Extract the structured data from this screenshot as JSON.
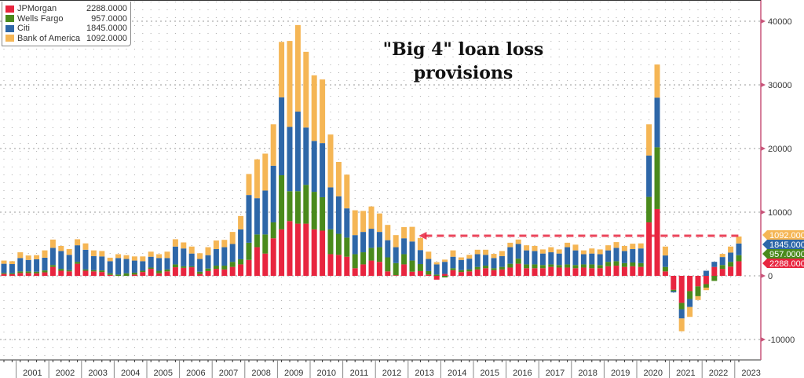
{
  "chart_data": {
    "type": "bar",
    "stacked": true,
    "title": "\"Big 4\" loan loss provisions",
    "xlabel": "",
    "ylabel": "",
    "ylim": [
      -13000,
      43500
    ],
    "yticks": [
      40000,
      30000,
      20000,
      10000,
      0,
      -10000
    ],
    "ytick_labels": [
      "40000",
      "30000",
      "20000",
      "10000",
      "0",
      "-10000"
    ],
    "grid": true,
    "legend_position": "top-left",
    "first_period": "2000Q3",
    "last_period": "2023Q1",
    "year_labels": [
      "2001",
      "2002",
      "2003",
      "2004",
      "2005",
      "2006",
      "2007",
      "2008",
      "2009",
      "2010",
      "2011",
      "2012",
      "2013",
      "2014",
      "2015",
      "2016",
      "2017",
      "2018",
      "2019",
      "2020",
      "2021",
      "2022",
      "2023"
    ],
    "annotation_line_value": 6300,
    "series": [
      {
        "name": "JPMorgan",
        "last": "2288.0000",
        "color": "#e8253f",
        "values": [
          300,
          250,
          450,
          450,
          400,
          550,
          1400,
          800,
          700,
          1900,
          800,
          700,
          600,
          150,
          0,
          0,
          200,
          600,
          1100,
          400,
          700,
          1350,
          1250,
          1350,
          300,
          750,
          1100,
          1000,
          1400,
          1800,
          2500,
          4500,
          3500,
          5900,
          7300,
          8600,
          8200,
          8200,
          7300,
          7100,
          3400,
          3300,
          3000,
          1200,
          1800,
          2400,
          2200,
          700,
          100,
          1800,
          650,
          750,
          200,
          -600,
          300,
          900,
          600,
          700,
          1000,
          1200,
          900,
          1000,
          1300,
          1900,
          1200,
          1200,
          1200,
          1400,
          1300,
          1300,
          1200,
          1300,
          1200,
          1200,
          1500,
          1600,
          1400,
          1500,
          1400,
          8400,
          10500,
          700,
          -2200,
          -4250,
          -2400,
          -1650,
          -1300,
          1400,
          1100,
          1450,
          2288
        ]
      },
      {
        "name": "Wells Fargo",
        "last": "957.0000",
        "color": "#4a8a1c",
        "values": [
          150,
          150,
          250,
          250,
          250,
          300,
          300,
          300,
          200,
          300,
          200,
          200,
          250,
          250,
          200,
          400,
          300,
          200,
          200,
          400,
          300,
          450,
          250,
          150,
          350,
          400,
          500,
          600,
          800,
          800,
          2700,
          2000,
          3000,
          2500,
          8500,
          4700,
          5100,
          6100,
          5900,
          5250,
          3900,
          3300,
          3000,
          2200,
          1900,
          2000,
          2300,
          2200,
          1900,
          1600,
          1750,
          1100,
          550,
          200,
          -250,
          300,
          300,
          300,
          400,
          400,
          300,
          400,
          600,
          800,
          600,
          600,
          500,
          400,
          400,
          500,
          500,
          500,
          600,
          500,
          700,
          700,
          600,
          600,
          600,
          4000,
          9700,
          700,
          -200,
          -1000,
          -1250,
          -1550,
          -550,
          -800,
          600,
          750,
          957
        ]
      },
      {
        "name": "Citi",
        "last": "1845.0000",
        "color": "#2e67a8",
        "values": [
          1450,
          1450,
          2100,
          1800,
          1950,
          2000,
          2700,
          2800,
          2400,
          2600,
          3100,
          2200,
          2200,
          1900,
          2600,
          2250,
          1900,
          1500,
          1700,
          2000,
          1800,
          2800,
          2800,
          2000,
          2000,
          2100,
          2600,
          2900,
          2800,
          4700,
          7500,
          5700,
          6900,
          8900,
          12250,
          10100,
          12500,
          9000,
          8000,
          8500,
          6600,
          5900,
          4600,
          3000,
          3200,
          3000,
          2400,
          2700,
          2500,
          2500,
          3000,
          2200,
          1900,
          1600,
          1900,
          1800,
          1600,
          1700,
          2000,
          1700,
          1600,
          1700,
          2600,
          2300,
          2200,
          2100,
          1800,
          1900,
          1800,
          2700,
          2300,
          1600,
          1700,
          1700,
          1800,
          2100,
          1900,
          2100,
          2300,
          6500,
          7800,
          1800,
          -200,
          -1450,
          -1250,
          0,
          800,
          800,
          1250,
          1450,
          1845
        ]
      },
      {
        "name": "Bank of America",
        "last": "1092.0000",
        "color": "#f5b655",
        "values": [
          500,
          450,
          900,
          700,
          650,
          1150,
          1300,
          800,
          900,
          950,
          1000,
          900,
          850,
          550,
          600,
          600,
          650,
          750,
          800,
          600,
          1000,
          1150,
          950,
          1100,
          900,
          1250,
          1350,
          1150,
          1900,
          2100,
          3300,
          6100,
          5800,
          6500,
          8700,
          13500,
          13600,
          11900,
          10300,
          10000,
          8300,
          5400,
          5300,
          3900,
          3300,
          3500,
          2900,
          2400,
          1900,
          1750,
          2300,
          1900,
          1150,
          350,
          350,
          1000,
          400,
          600,
          700,
          800,
          650,
          800,
          700,
          700,
          800,
          800,
          650,
          800,
          650,
          700,
          900,
          600,
          800,
          750,
          800,
          900,
          800,
          850,
          800,
          4900,
          5200,
          1400,
          0,
          -2000,
          -1550,
          -600,
          -400,
          0,
          500,
          950,
          1092
        ]
      }
    ]
  }
}
